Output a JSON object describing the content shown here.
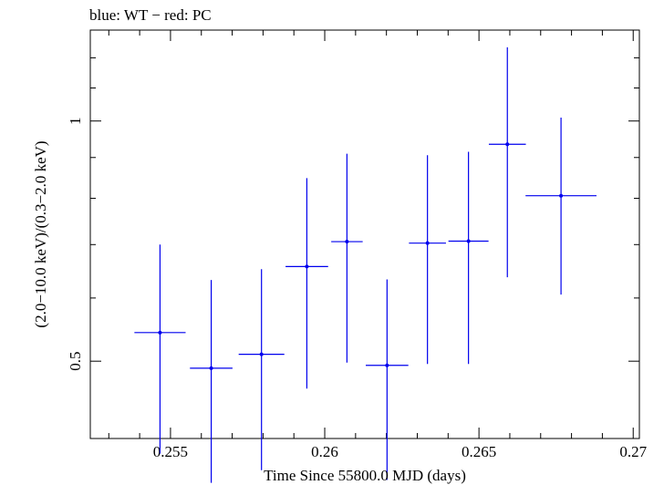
{
  "chart_data": {
    "type": "scatter",
    "title": "blue: WT − red: PC",
    "xlabel": "Time Since 55800.0 MJD (days)",
    "ylabel": "(2.0−10.0 keV)/(0.3−2.0 keV)",
    "xlim": [
      0.2524,
      0.2702
    ],
    "ylim": [
      0.4,
      1.3
    ],
    "y_scale": "log",
    "x_ticks": [
      {
        "value": 0.255,
        "label": "0.255"
      },
      {
        "value": 0.26,
        "label": "0.26"
      },
      {
        "value": 0.265,
        "label": "0.265"
      },
      {
        "value": 0.27,
        "label": "0.27"
      }
    ],
    "y_ticks": [
      {
        "value": 0.5,
        "label": "0.5"
      },
      {
        "value": 1.0,
        "label": "1"
      }
    ],
    "grid": false,
    "series": [
      {
        "name": "WT",
        "color": "#0000ee",
        "points": [
          {
            "x": 0.25466,
            "y": 0.543,
            "xerr": 0.00083,
            "ylo": 0.383,
            "yhi": 0.7
          },
          {
            "x": 0.25632,
            "y": 0.49,
            "xerr": 0.00069,
            "ylo": 0.352,
            "yhi": 0.632
          },
          {
            "x": 0.25795,
            "y": 0.51,
            "xerr": 0.00074,
            "ylo": 0.365,
            "yhi": 0.652
          },
          {
            "x": 0.25942,
            "y": 0.657,
            "xerr": 0.00069,
            "ylo": 0.462,
            "yhi": 0.848
          },
          {
            "x": 0.26072,
            "y": 0.706,
            "xerr": 0.00051,
            "ylo": 0.498,
            "yhi": 0.91
          },
          {
            "x": 0.26202,
            "y": 0.494,
            "xerr": 0.00069,
            "ylo": 0.355,
            "yhi": 0.633
          },
          {
            "x": 0.26333,
            "y": 0.703,
            "xerr": 0.0006,
            "ylo": 0.496,
            "yhi": 0.906
          },
          {
            "x": 0.26466,
            "y": 0.707,
            "xerr": 0.00065,
            "ylo": 0.496,
            "yhi": 0.915
          },
          {
            "x": 0.26592,
            "y": 0.935,
            "xerr": 0.0006,
            "ylo": 0.637,
            "yhi": 1.237
          },
          {
            "x": 0.26766,
            "y": 0.806,
            "xerr": 0.00115,
            "ylo": 0.606,
            "yhi": 1.01
          }
        ]
      }
    ]
  }
}
